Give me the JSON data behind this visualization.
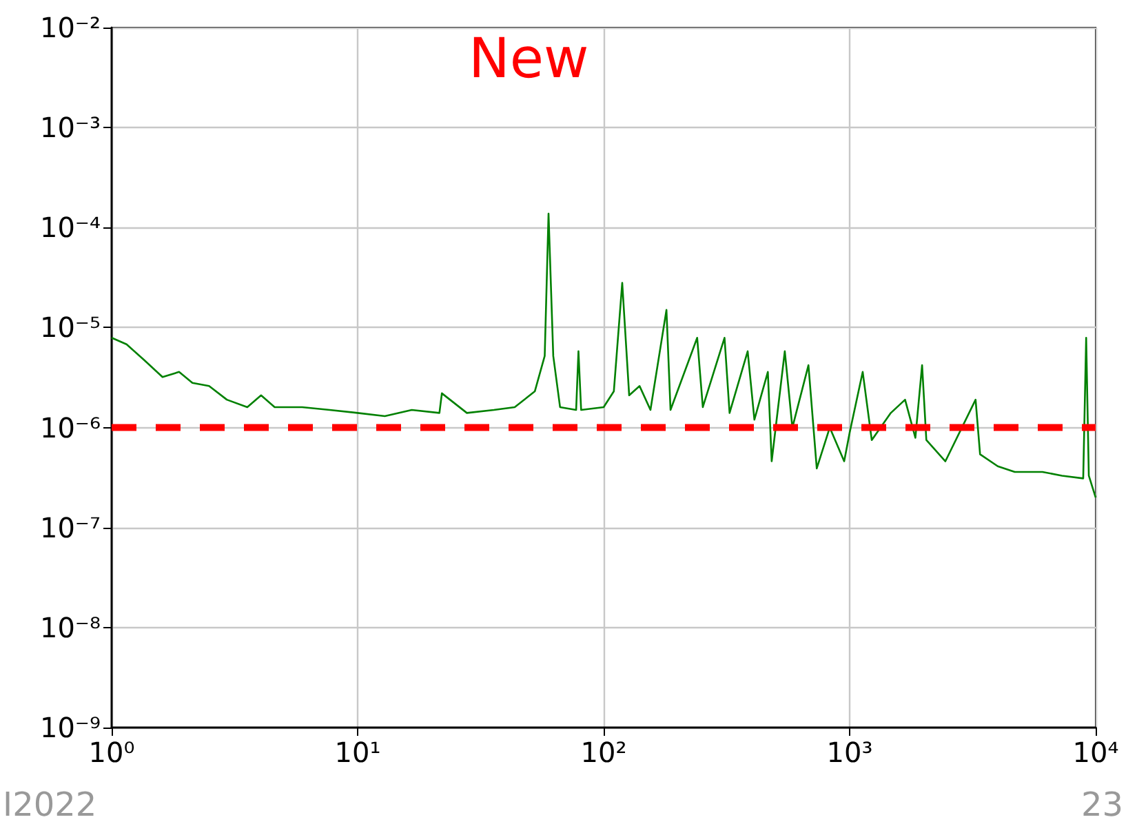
{
  "chart_data": {
    "type": "line",
    "title": "New",
    "log": "xy",
    "grid": true,
    "marker": "none",
    "line_style": "solid",
    "xlim": [
      1,
      10000
    ],
    "ylim": [
      1e-09,
      0.01
    ],
    "xticks": [
      {
        "value": 1,
        "label": "10⁰"
      },
      {
        "value": 10,
        "label": "10¹"
      },
      {
        "value": 100,
        "label": "10²"
      },
      {
        "value": 1000,
        "label": "10³"
      },
      {
        "value": 10000,
        "label": "10⁴"
      }
    ],
    "yticks": [
      {
        "value": 1e-09,
        "label": "10⁻⁹"
      },
      {
        "value": 1e-08,
        "label": "10⁻⁸"
      },
      {
        "value": 1e-07,
        "label": "10⁻⁷"
      },
      {
        "value": 1e-06,
        "label": "10⁻⁶"
      },
      {
        "value": 1e-05,
        "label": "10⁻⁵"
      },
      {
        "value": 0.0001,
        "label": "10⁻⁴"
      },
      {
        "value": 0.001,
        "label": "10⁻³"
      },
      {
        "value": 0.01,
        "label": "10⁻²"
      }
    ],
    "ref_lines": [
      {
        "axis": "y",
        "value": 1e-06,
        "color": "#ff0000",
        "line_style": "dashed"
      }
    ],
    "annotations": [
      "I2022",
      "23"
    ],
    "series": [
      {
        "color": "#008000",
        "x": [
          1,
          1.15,
          1.36,
          1.61,
          1.88,
          2.13,
          2.49,
          2.94,
          3.56,
          4.05,
          4.6,
          5.95,
          7.7,
          10,
          12.9,
          16.6,
          21.5,
          22,
          27.8,
          35.8,
          43.5,
          52.5,
          57.6,
          59.7,
          62.4,
          66.5,
          77.3,
          79,
          81,
          100,
          110,
          119,
          127,
          140,
          155,
          180,
          187,
          240,
          253,
          310,
          325,
          385,
          410,
          465,
          482,
          545,
          585,
          680,
          735,
          830,
          950,
          1000,
          1130,
          1230,
          1470,
          1680,
          1850,
          1970,
          2050,
          2450,
          3250,
          3390,
          4000,
          4690,
          6080,
          7300,
          8900,
          9150,
          9380,
          10000
        ],
        "values": [
          7.9e-06,
          6.8e-06,
          4.7e-06,
          3.2e-06,
          3.6e-06,
          2.8e-06,
          2.6e-06,
          1.9e-06,
          1.6e-06,
          2.1e-06,
          1.6e-06,
          1.6e-06,
          1.5e-06,
          1.4e-06,
          1.3e-06,
          1.5e-06,
          1.4e-06,
          2.2e-06,
          1.4e-06,
          1.5e-06,
          1.6e-06,
          2.3e-06,
          5.2e-06,
          0.000138,
          5.2e-06,
          1.6e-06,
          1.5e-06,
          5.8e-06,
          1.5e-06,
          1.6e-06,
          2.3e-06,
          2.8e-05,
          2.1e-06,
          2.6e-06,
          1.5e-06,
          1.5e-05,
          1.5e-06,
          7.9e-06,
          1.6e-06,
          7.9e-06,
          1.4e-06,
          5.8e-06,
          1.2e-06,
          3.6e-06,
          4.6e-07,
          5.8e-06,
          1e-06,
          4.2e-06,
          3.9e-07,
          1e-06,
          4.6e-07,
          8.9e-07,
          3.6e-06,
          7.5e-07,
          1.4e-06,
          1.9e-06,
          7.9e-07,
          4.2e-06,
          7.5e-07,
          4.6e-07,
          1.9e-06,
          5.4e-07,
          4.1e-07,
          3.6e-07,
          3.6e-07,
          3.3e-07,
          3.1e-07,
          7.9e-06,
          3.3e-07,
          2e-07
        ]
      }
    ]
  }
}
